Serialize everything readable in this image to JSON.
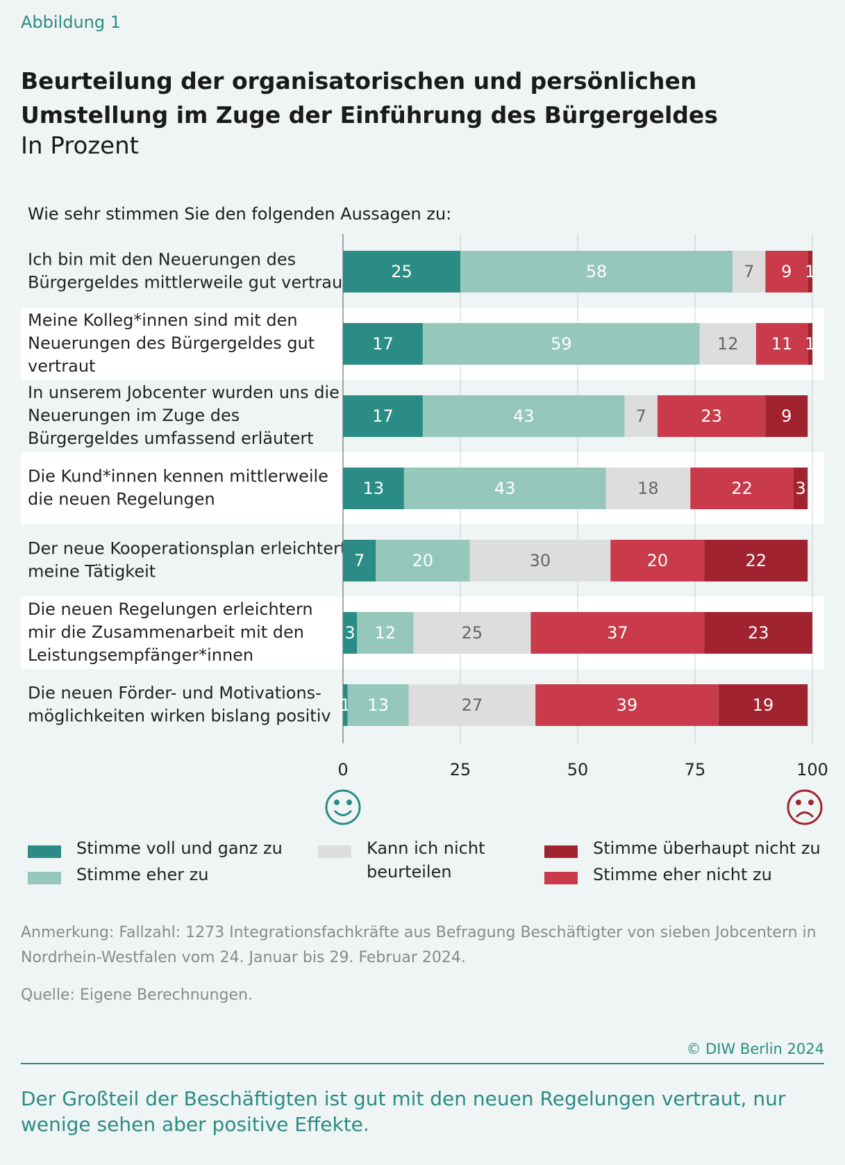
{
  "figure_label": "Abbildung 1",
  "chart_data": {
    "type": "stacked_barh",
    "title": [
      "Beurteilung der organisatorischen und persönlichen",
      "Umstellung im Zuge der Einführung des Bürgergeldes"
    ],
    "subtitle": "In Prozent",
    "question": "Wie sehr stimmen Sie den folgenden Aussagen zu:",
    "categories": [
      [
        "Ich bin mit den Neuerungen des",
        "Bürgergeldes mittlerweile gut vertraut"
      ],
      [
        "Meine Kolleg*innen sind mit den",
        "Neuerungen des Bürgergeldes gut",
        "vertraut"
      ],
      [
        "In unserem Jobcenter wurden uns die",
        "Neuerungen im Zuge des",
        "Bürgergeldes umfassend erläutert"
      ],
      [
        "Die Kund*innen kennen mittlerweile",
        "die neuen Regelungen"
      ],
      [
        "Der neue Kooperationsplan erleichtert",
        "meine Tätigkeit"
      ],
      [
        "Die neuen Regelungen erleichtern",
        "mir die Zusammenarbeit mit den",
        "Leistungsempfänger*innen"
      ],
      [
        "Die neuen Förder- und Motivations-",
        "möglichkeiten wirken bislang positiv"
      ]
    ],
    "series": [
      {
        "name": "Stimme voll und ganz zu",
        "color": "#2a8c84",
        "text_color": "#ffffff",
        "values": [
          25,
          17,
          17,
          13,
          7,
          3,
          1
        ]
      },
      {
        "name": "Stimme eher zu",
        "color": "#95c7bb",
        "text_color": "#ffffff",
        "values": [
          58,
          59,
          43,
          43,
          20,
          12,
          13
        ]
      },
      {
        "name": "Kann ich nicht beurteilen",
        "color": "#dddddd",
        "text_color": "#666666",
        "values": [
          7,
          12,
          7,
          18,
          30,
          25,
          27
        ]
      },
      {
        "name": "Stimme eher nicht zu",
        "color": "#c93a4a",
        "text_color": "#ffffff",
        "values": [
          9,
          11,
          23,
          22,
          20,
          37,
          39
        ]
      },
      {
        "name": "Stimme überhaupt nicht zu",
        "color": "#a0232f",
        "text_color": "#ffffff",
        "values": [
          1,
          1,
          9,
          3,
          22,
          23,
          19
        ]
      }
    ],
    "xlim": [
      0,
      100
    ],
    "xticks": [
      0,
      25,
      50,
      75,
      100
    ],
    "grid": true
  },
  "note": "Anmerkung: Fallzahl: 1273 Integrationsfachkräfte aus Befragung Beschäftigter von sieben Jobcentern in Nordrhein-Westfalen vom 24. Januar bis 29. Februar 2024.",
  "source": "Quelle: Eigene Berechnungen.",
  "copyright": "© DIW Berlin 2024",
  "summary": "Der Großteil der Beschäftigten ist gut mit den neuen Regelungen vertraut, nur wenige sehen aber positive Effekte."
}
